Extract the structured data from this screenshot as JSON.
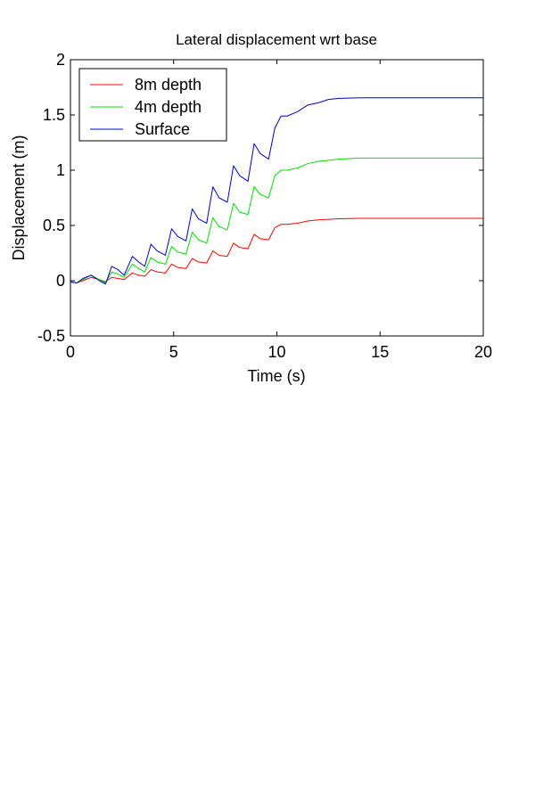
{
  "chart_data": {
    "type": "line",
    "title": "Lateral displacement wrt base",
    "xlabel": "Time (s)",
    "ylabel": "Displacement (m)",
    "xlim": [
      0,
      20
    ],
    "ylim": [
      -0.5,
      2
    ],
    "xticks": [
      "0",
      "5",
      "10",
      "15",
      "20"
    ],
    "yticks": [
      "-0.5",
      "0",
      "0.5",
      "1",
      "1.5",
      "2"
    ],
    "grid": false,
    "legend_position": "top-left",
    "series": [
      {
        "name": "8m depth",
        "color": "#ff0000",
        "x": [
          0,
          0.3,
          0.6,
          1.0,
          1.4,
          1.7,
          2.0,
          2.3,
          2.6,
          3.0,
          3.3,
          3.6,
          3.9,
          4.2,
          4.6,
          4.9,
          5.2,
          5.6,
          5.9,
          6.2,
          6.6,
          6.9,
          7.2,
          7.6,
          7.9,
          8.2,
          8.6,
          8.9,
          9.2,
          9.6,
          9.9,
          10.2,
          10.5,
          11.0,
          11.5,
          12.0,
          12.5,
          13.0,
          14.0,
          16.0,
          18.0,
          20.0
        ],
        "y": [
          -0.01,
          -0.02,
          0.0,
          0.03,
          0.01,
          -0.01,
          0.03,
          0.02,
          0.01,
          0.07,
          0.05,
          0.04,
          0.1,
          0.08,
          0.07,
          0.15,
          0.12,
          0.11,
          0.2,
          0.17,
          0.16,
          0.27,
          0.23,
          0.22,
          0.34,
          0.3,
          0.29,
          0.42,
          0.38,
          0.37,
          0.48,
          0.51,
          0.51,
          0.52,
          0.54,
          0.55,
          0.555,
          0.56,
          0.565,
          0.565,
          0.565,
          0.565
        ]
      },
      {
        "name": "4m depth",
        "color": "#00e000",
        "x": [
          0,
          0.3,
          0.6,
          1.0,
          1.4,
          1.7,
          2.0,
          2.3,
          2.6,
          3.0,
          3.3,
          3.6,
          3.9,
          4.2,
          4.6,
          4.9,
          5.2,
          5.6,
          5.9,
          6.2,
          6.6,
          6.9,
          7.2,
          7.6,
          7.9,
          8.2,
          8.6,
          8.9,
          9.2,
          9.6,
          9.9,
          10.2,
          10.5,
          11.0,
          11.5,
          12.0,
          12.5,
          13.0,
          14.0,
          16.0,
          18.0,
          20.0
        ],
        "y": [
          -0.01,
          -0.02,
          0.01,
          0.05,
          0.01,
          -0.02,
          0.08,
          0.06,
          0.03,
          0.15,
          0.11,
          0.08,
          0.21,
          0.17,
          0.15,
          0.31,
          0.26,
          0.24,
          0.44,
          0.37,
          0.34,
          0.57,
          0.49,
          0.46,
          0.7,
          0.62,
          0.6,
          0.85,
          0.78,
          0.75,
          0.95,
          1.0,
          1.0,
          1.02,
          1.06,
          1.08,
          1.09,
          1.1,
          1.11,
          1.11,
          1.11,
          1.11
        ]
      },
      {
        "name": "Surface",
        "color": "#0000cc",
        "x": [
          0,
          0.3,
          0.6,
          1.0,
          1.4,
          1.7,
          2.0,
          2.3,
          2.6,
          3.0,
          3.3,
          3.6,
          3.9,
          4.2,
          4.6,
          4.9,
          5.2,
          5.6,
          5.9,
          6.2,
          6.6,
          6.9,
          7.2,
          7.6,
          7.9,
          8.2,
          8.6,
          8.9,
          9.2,
          9.6,
          9.9,
          10.2,
          10.5,
          11.0,
          11.5,
          12.0,
          12.5,
          13.0,
          14.0,
          16.0,
          18.0,
          20.0
        ],
        "y": [
          -0.01,
          -0.02,
          0.02,
          0.05,
          0.0,
          -0.03,
          0.13,
          0.1,
          0.05,
          0.22,
          0.17,
          0.13,
          0.33,
          0.27,
          0.23,
          0.47,
          0.4,
          0.36,
          0.65,
          0.56,
          0.52,
          0.85,
          0.75,
          0.71,
          1.04,
          0.95,
          0.9,
          1.24,
          1.15,
          1.1,
          1.38,
          1.49,
          1.49,
          1.53,
          1.59,
          1.61,
          1.64,
          1.65,
          1.655,
          1.655,
          1.655,
          1.655
        ]
      }
    ]
  }
}
